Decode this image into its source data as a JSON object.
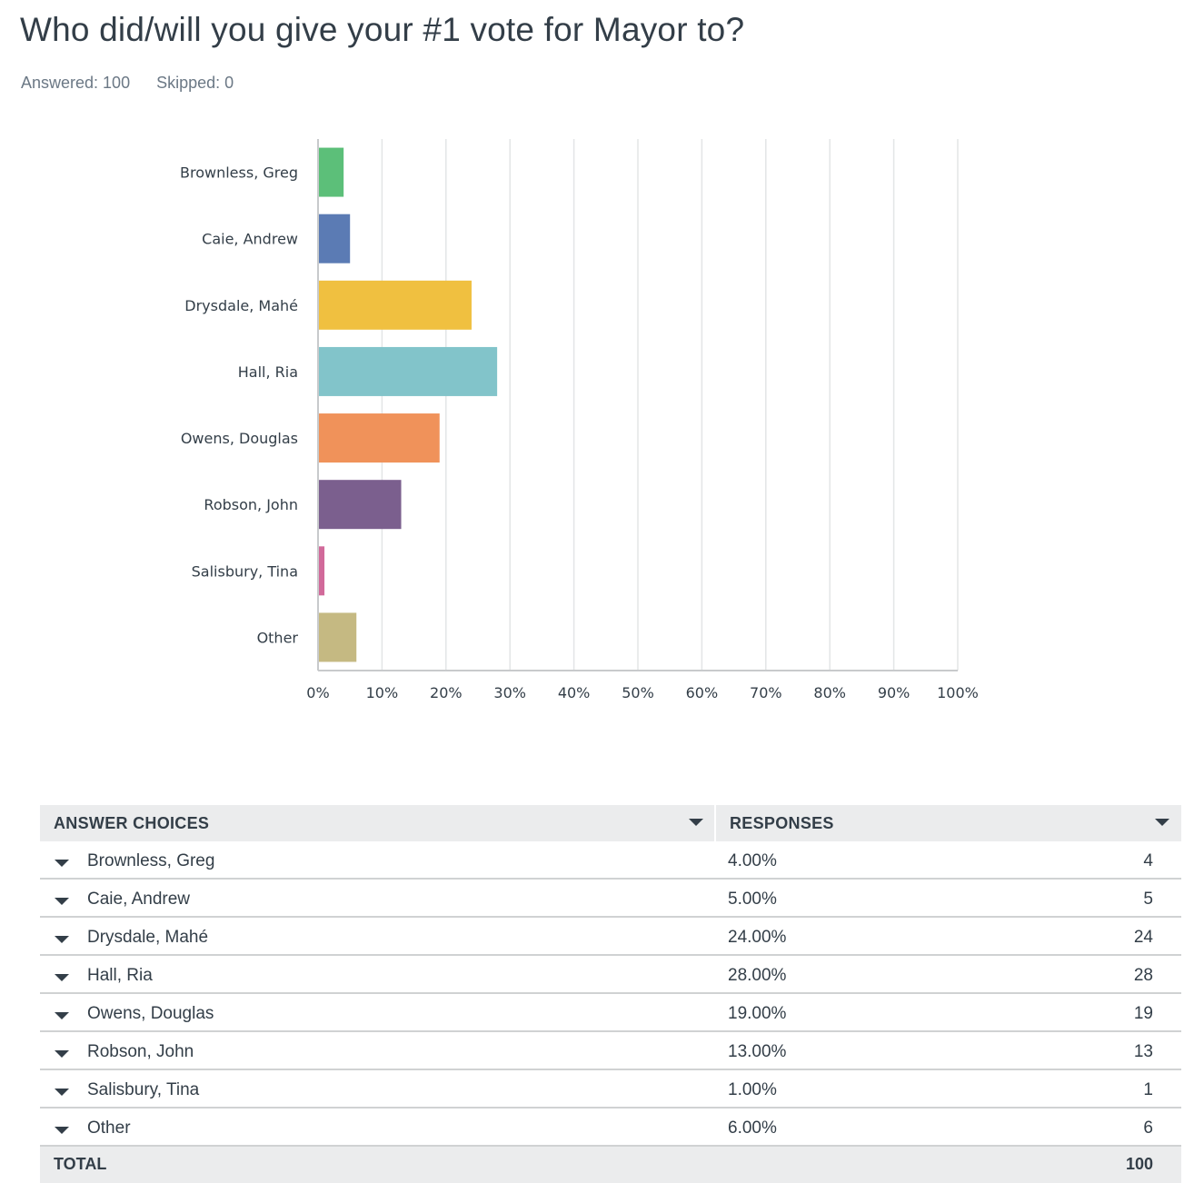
{
  "question": {
    "title": "Who did/will you give your #1 vote for Mayor to?",
    "answered": "Answered: 100",
    "skipped": "Skipped: 0"
  },
  "chart_data": {
    "type": "bar",
    "orientation": "horizontal",
    "categories": [
      "Brownless, Greg",
      "Caie, Andrew",
      "Drysdale, Mahé",
      "Hall, Ria",
      "Owens, Douglas",
      "Robson, John",
      "Salisbury, Tina",
      "Other"
    ],
    "values": [
      4,
      5,
      24,
      28,
      19,
      13,
      1,
      6
    ],
    "colors": [
      "#5cbf79",
      "#5b7bb4",
      "#f0c040",
      "#82c4ca",
      "#f0925a",
      "#7b5f8e",
      "#d16a9a",
      "#c5b982"
    ],
    "xlim": [
      0,
      100
    ],
    "xticks": [
      "0%",
      "10%",
      "20%",
      "30%",
      "40%",
      "50%",
      "60%",
      "70%",
      "80%",
      "90%",
      "100%"
    ],
    "grid": true,
    "xlabel": "",
    "ylabel": ""
  },
  "table": {
    "headers": [
      "ANSWER CHOICES",
      "RESPONSES"
    ],
    "rows": [
      {
        "choice": "Brownless, Greg",
        "percent": "4.00%",
        "count": "4"
      },
      {
        "choice": "Caie, Andrew",
        "percent": "5.00%",
        "count": "5"
      },
      {
        "choice": "Drysdale, Mahé",
        "percent": "24.00%",
        "count": "24"
      },
      {
        "choice": "Hall, Ria",
        "percent": "28.00%",
        "count": "28"
      },
      {
        "choice": "Owens, Douglas",
        "percent": "19.00%",
        "count": "19"
      },
      {
        "choice": "Robson, John",
        "percent": "13.00%",
        "count": "13"
      },
      {
        "choice": "Salisbury, Tina",
        "percent": "1.00%",
        "count": "1"
      },
      {
        "choice": "Other",
        "percent": "6.00%",
        "count": "6"
      }
    ],
    "total_label": "TOTAL",
    "total_value": "100"
  }
}
